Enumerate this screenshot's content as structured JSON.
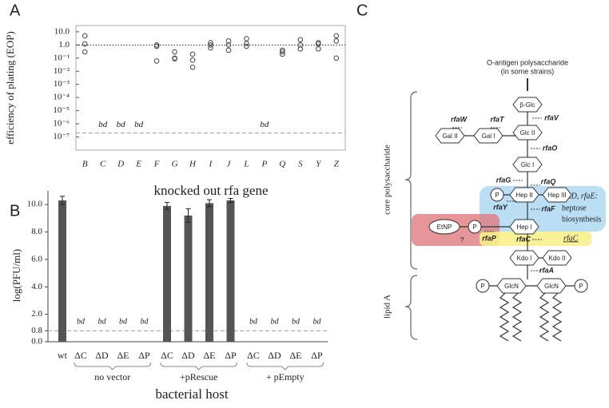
{
  "chart_data": [
    {
      "type": "scatter",
      "panel": "A",
      "y_label": "efficiency of plating (EOP)",
      "x_label": "knocked out rfa gene",
      "log_scale": true,
      "categories": [
        "B",
        "C",
        "D",
        "E",
        "F",
        "G",
        "H",
        "I",
        "J",
        "L",
        "P",
        "Q",
        "S",
        "Y",
        "Z"
      ],
      "values": [
        [
          5,
          1.2,
          0.3
        ],
        null,
        null,
        null,
        [
          1.0,
          0.8,
          0.06
        ],
        [
          0.3,
          0.1,
          0.09
        ],
        [
          0.2,
          0.07,
          0.02
        ],
        [
          1.5,
          1.0,
          0.6
        ],
        [
          2,
          1,
          0.4
        ],
        [
          3,
          1.3,
          0.8
        ],
        null,
        [
          0.4,
          0.3,
          0.2
        ],
        [
          2.5,
          1,
          0.5
        ],
        [
          1.5,
          1.2,
          0.5
        ],
        [
          5,
          2,
          0.1
        ]
      ],
      "value_labels": [
        null,
        "bd",
        "bd",
        "bd",
        null,
        null,
        null,
        null,
        null,
        null,
        "bd",
        null,
        null,
        null,
        null
      ],
      "ylim": [
        1e-08,
        30
      ],
      "yticks": [
        {
          "value": 10,
          "label": "10.0"
        },
        {
          "value": 1,
          "label": "1.0"
        },
        {
          "value": 0.1,
          "label": "10⁻¹"
        },
        {
          "value": 0.01,
          "label": "10⁻²"
        },
        {
          "value": 0.001,
          "label": "10⁻³"
        },
        {
          "value": 0.0001,
          "label": "10⁻⁴"
        },
        {
          "value": 1e-05,
          "label": "10⁻⁵"
        },
        {
          "value": 1e-06,
          "label": "10⁻⁶"
        },
        {
          "value": 1e-07,
          "label": "10⁻⁷"
        }
      ],
      "reference_lines": [
        {
          "value": 1,
          "style": "dotted"
        },
        {
          "value": 2e-07,
          "style": "dashed"
        }
      ],
      "grid": false
    },
    {
      "type": "bar",
      "panel": "B",
      "y_label": "log(PFU/ml)",
      "x_label": "bacterial host",
      "color": "#555555",
      "categories": [
        "wt",
        "ΔC",
        "ΔD",
        "ΔE",
        "ΔP",
        "ΔC",
        "ΔD",
        "ΔE",
        "ΔP",
        "ΔC",
        "ΔD",
        "ΔE",
        "ΔP"
      ],
      "values": [
        10.3,
        null,
        null,
        null,
        null,
        9.9,
        9.2,
        10.1,
        10.3,
        null,
        null,
        null,
        null
      ],
      "errors": [
        0.3,
        null,
        null,
        null,
        null,
        0.25,
        0.5,
        0.25,
        0.15,
        null,
        null,
        null,
        null
      ],
      "value_labels": [
        null,
        "bd",
        "bd",
        "bd",
        "bd",
        null,
        null,
        null,
        null,
        "bd",
        "bd",
        "bd",
        "bd"
      ],
      "groups": [
        "no vector",
        "+pRescue",
        "+ pEmpty"
      ],
      "ylim": [
        0,
        11
      ],
      "yticks": [
        {
          "value": 0,
          "label": "0.0"
        },
        {
          "value": 0.8,
          "label": "0.8"
        },
        {
          "value": 2,
          "label": "2.0"
        },
        {
          "value": 4,
          "label": "4.0"
        },
        {
          "value": 6,
          "label": "6.0"
        },
        {
          "value": 8,
          "label": "8.0"
        },
        {
          "value": 10,
          "label": "10.0"
        }
      ],
      "reference_lines": [
        {
          "value": 0.8,
          "style": "dashed"
        }
      ],
      "grid": false
    }
  ],
  "diagram": {
    "panel": "C",
    "top_label": [
      "O-antigen polysaccharide",
      "(in some strains)"
    ],
    "nodes": [
      {
        "label": "β-Glc",
        "shape": "hexagon"
      },
      {
        "label": "Glc II",
        "shape": "hexagon"
      },
      {
        "label": "Gal I",
        "shape": "hexagon"
      },
      {
        "label": "Gal II",
        "shape": "hexagon"
      },
      {
        "label": "Glc I",
        "shape": "hexagon"
      },
      {
        "label": "P",
        "shape": "circle"
      },
      {
        "label": "Hep II",
        "shape": "hexagon"
      },
      {
        "label": "Hep III",
        "shape": "hexagon"
      },
      {
        "label": "EtNP",
        "shape": "ellipse"
      },
      {
        "label": "P",
        "shape": "circle"
      },
      {
        "label": "Hep I",
        "shape": "hexagon"
      },
      {
        "label": "Kdo I",
        "shape": "hexagon"
      },
      {
        "label": "Kdo II",
        "shape": "hexagon"
      },
      {
        "label": "P",
        "shape": "circle"
      },
      {
        "label": "GlcN",
        "shape": "hexagon"
      },
      {
        "label": "GlcN",
        "shape": "hexagon"
      },
      {
        "label": "P",
        "shape": "circle"
      }
    ],
    "genes": [
      "rfaW",
      "rfaT",
      "rfaV",
      "rfaO",
      "rfaG",
      "rfaQ",
      "rfaY",
      "rfaF",
      "rfaP",
      "rfaC",
      "rfaA"
    ],
    "heptose_note": [
      "rfaD, rfaE:",
      "heptose",
      "biosynthesis"
    ],
    "rfaC_note": "rfaC",
    "unknown": "?",
    "regions": [
      "core polysaccharide",
      "lipid A"
    ]
  }
}
